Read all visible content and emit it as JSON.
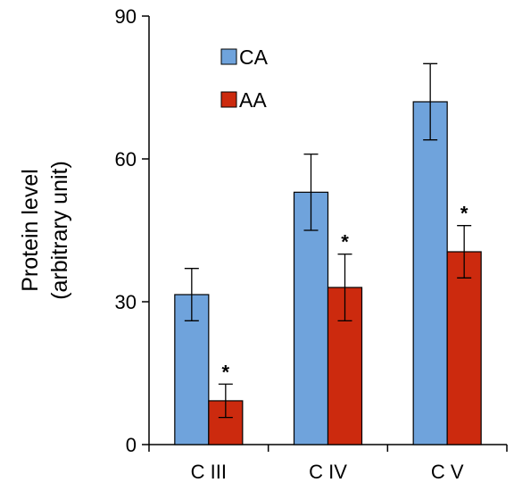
{
  "chart_data": {
    "type": "bar",
    "categories": [
      "C III",
      "C IV",
      "C V"
    ],
    "series": [
      {
        "name": "CA",
        "color": "#6fa3dc",
        "values": [
          31.5,
          53,
          72
        ],
        "errors": [
          5.5,
          8,
          8
        ]
      },
      {
        "name": "AA",
        "color": "#cc2a0e",
        "values": [
          9.2,
          33,
          40.5
        ],
        "errors": [
          3.5,
          7,
          5.5
        ]
      }
    ],
    "significance": [
      "*",
      "*",
      "*"
    ],
    "ylabel_line1": "Protein level",
    "ylabel_line2": "(arbitrary unit)",
    "ylim": [
      0,
      90
    ],
    "yticks": [
      0,
      30,
      60,
      90
    ],
    "legend_position": "top-left",
    "grid": false
  }
}
